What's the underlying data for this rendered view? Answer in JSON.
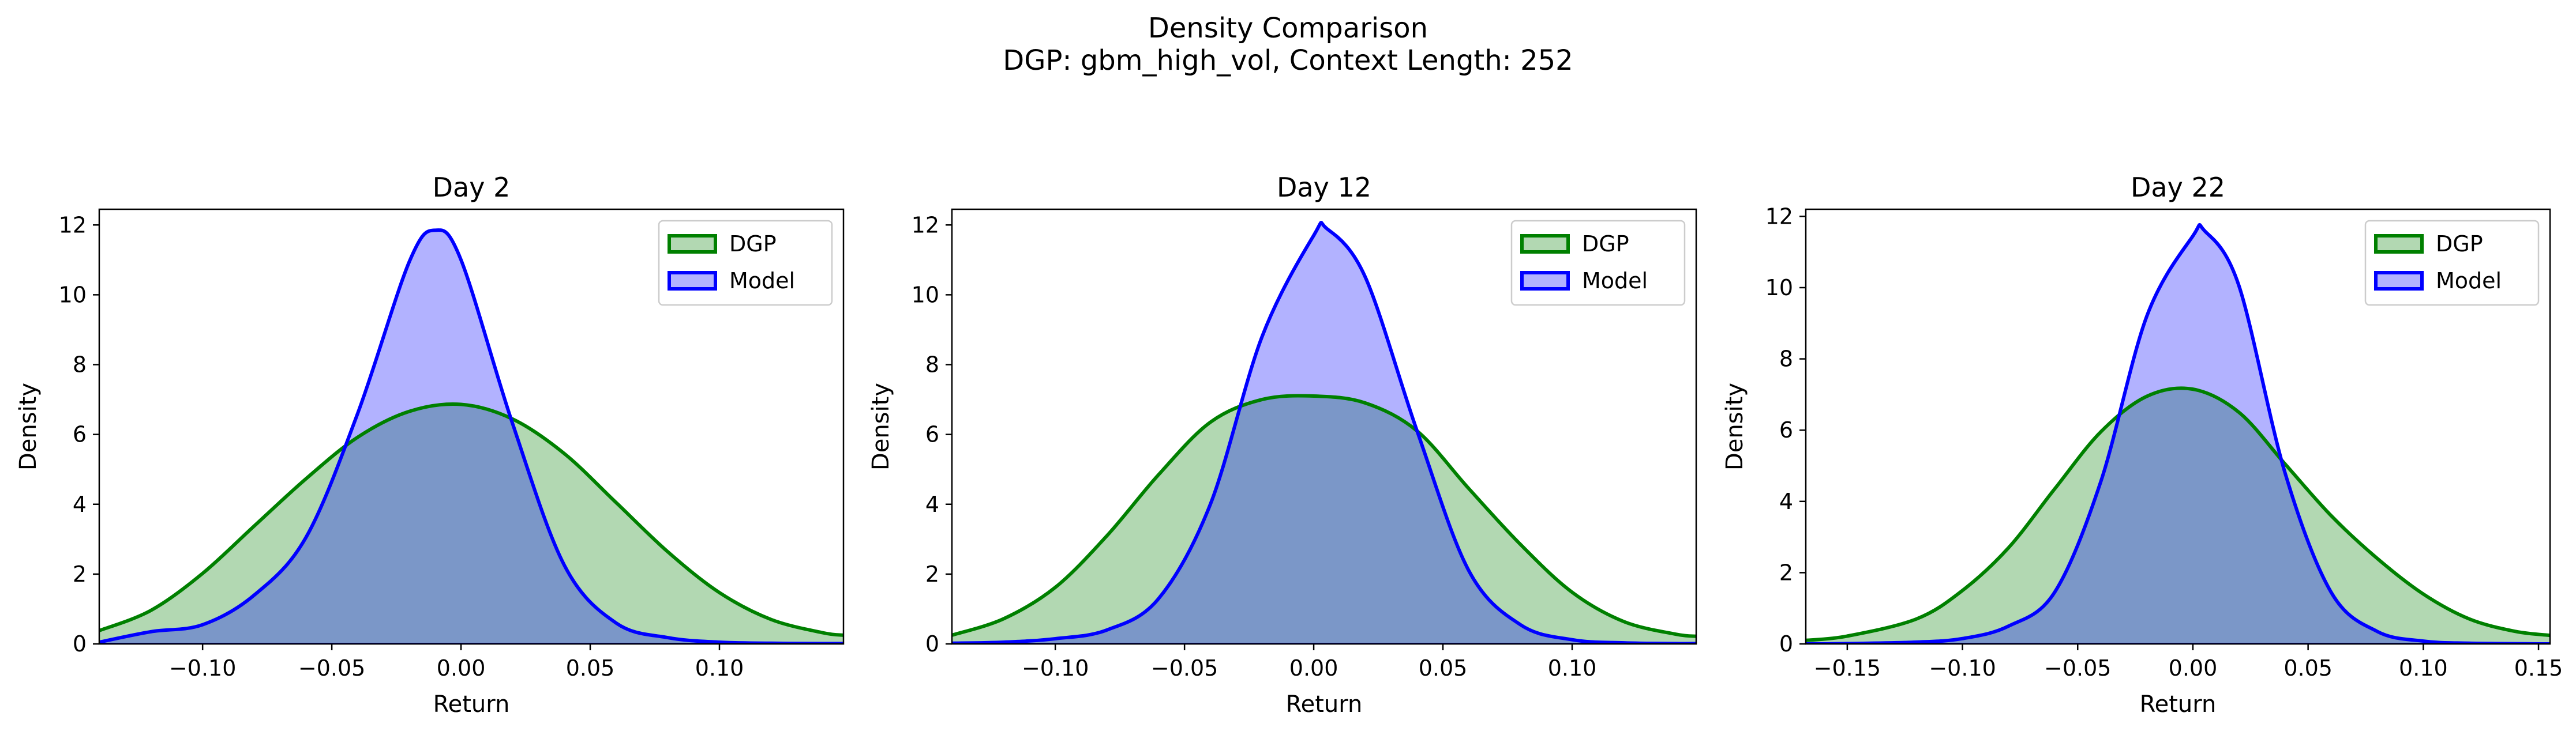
{
  "figure": {
    "title_line1": "Density Comparison",
    "title_line2": "DGP: gbm_high_vol, Context Length: 252"
  },
  "colors": {
    "dgp_line": "#008000",
    "dgp_fill": "#b2d8b2",
    "model_line": "#0000ff",
    "model_fill": "#b2b2ff",
    "overlap_fill": "#7b97c8"
  },
  "chart_data": [
    {
      "type": "area",
      "title": "Day 2",
      "xlabel": "Return",
      "ylabel": "Density",
      "xlim": [
        -0.14,
        0.148
      ],
      "ylim": [
        0,
        12.45
      ],
      "xticks": [
        -0.1,
        -0.05,
        0.0,
        0.05,
        0.1
      ],
      "xtick_labels": [
        "−0.10",
        "−0.05",
        "0.00",
        "0.05",
        "0.10"
      ],
      "yticks": [
        0,
        2,
        4,
        6,
        8,
        10,
        12
      ],
      "ytick_labels": [
        "0",
        "2",
        "4",
        "6",
        "8",
        "10",
        "12"
      ],
      "legend": "top-right",
      "series": [
        {
          "name": "DGP",
          "x": [
            -0.14,
            -0.12,
            -0.1,
            -0.08,
            -0.06,
            -0.04,
            -0.02,
            0.0,
            0.02,
            0.04,
            0.06,
            0.08,
            0.1,
            0.12,
            0.14,
            0.148
          ],
          "y": [
            0.38,
            0.96,
            2.02,
            3.38,
            4.73,
            5.92,
            6.66,
            6.86,
            6.44,
            5.45,
            4.05,
            2.64,
            1.47,
            0.7,
            0.32,
            0.25
          ]
        },
        {
          "name": "Model",
          "x": [
            -0.14,
            -0.12,
            -0.1,
            -0.08,
            -0.06,
            -0.04,
            -0.02,
            -0.01,
            0.0,
            0.02,
            0.04,
            0.06,
            0.08,
            0.1,
            0.12,
            0.14,
            0.148
          ],
          "y": [
            0.05,
            0.35,
            0.55,
            1.4,
            3.05,
            6.6,
            10.95,
            11.85,
            11.0,
            6.3,
            2.25,
            0.6,
            0.18,
            0.05,
            0.02,
            0.01,
            0.01
          ]
        }
      ]
    },
    {
      "type": "area",
      "title": "Day 12",
      "xlabel": "Return",
      "ylabel": "Density",
      "xlim": [
        -0.14,
        0.148
      ],
      "ylim": [
        0,
        12.45
      ],
      "xticks": [
        -0.1,
        -0.05,
        0.0,
        0.05,
        0.1
      ],
      "xtick_labels": [
        "−0.10",
        "−0.05",
        "0.00",
        "0.05",
        "0.10"
      ],
      "yticks": [
        0,
        2,
        4,
        6,
        8,
        10,
        12
      ],
      "ytick_labels": [
        "0",
        "2",
        "4",
        "6",
        "8",
        "10",
        "12"
      ],
      "legend": "top-right",
      "series": [
        {
          "name": "DGP",
          "x": [
            -0.14,
            -0.12,
            -0.1,
            -0.08,
            -0.06,
            -0.04,
            -0.02,
            0.0,
            0.02,
            0.04,
            0.06,
            0.08,
            0.1,
            0.12,
            0.14,
            0.148
          ],
          "y": [
            0.25,
            0.72,
            1.62,
            3.1,
            4.85,
            6.35,
            7.0,
            7.1,
            6.9,
            6.1,
            4.45,
            2.85,
            1.48,
            0.64,
            0.28,
            0.22
          ]
        },
        {
          "name": "Model",
          "x": [
            -0.14,
            -0.12,
            -0.1,
            -0.08,
            -0.06,
            -0.04,
            -0.02,
            0.0,
            0.005,
            0.02,
            0.04,
            0.06,
            0.08,
            0.1,
            0.12,
            0.14,
            0.148
          ],
          "y": [
            0.02,
            0.05,
            0.15,
            0.4,
            1.3,
            4.0,
            8.8,
            11.7,
            11.9,
            10.5,
            6.1,
            2.1,
            0.55,
            0.12,
            0.03,
            0.01,
            0.01
          ]
        }
      ]
    },
    {
      "type": "area",
      "title": "Day 22",
      "xlabel": "Return",
      "ylabel": "Density",
      "xlim": [
        -0.168,
        0.155
      ],
      "ylim": [
        0,
        12.2
      ],
      "xticks": [
        -0.15,
        -0.1,
        -0.05,
        0.0,
        0.05,
        0.1,
        0.15
      ],
      "xtick_labels": [
        "−0.15",
        "−0.10",
        "−0.05",
        "0.00",
        "0.05",
        "0.10",
        "0.15"
      ],
      "yticks": [
        0,
        2,
        4,
        6,
        8,
        10,
        12
      ],
      "ytick_labels": [
        "0",
        "2",
        "4",
        "6",
        "8",
        "10",
        "12"
      ],
      "legend": "top-right",
      "series": [
        {
          "name": "DGP",
          "x": [
            -0.168,
            -0.15,
            -0.12,
            -0.1,
            -0.08,
            -0.06,
            -0.04,
            -0.02,
            0.0,
            0.02,
            0.04,
            0.06,
            0.08,
            0.1,
            0.12,
            0.14,
            0.155
          ],
          "y": [
            0.1,
            0.22,
            0.7,
            1.5,
            2.7,
            4.35,
            5.95,
            6.95,
            7.15,
            6.5,
            5.05,
            3.6,
            2.4,
            1.4,
            0.7,
            0.35,
            0.24
          ]
        },
        {
          "name": "Model",
          "x": [
            -0.168,
            -0.15,
            -0.12,
            -0.1,
            -0.08,
            -0.06,
            -0.04,
            -0.02,
            0.0,
            0.005,
            0.02,
            0.04,
            0.06,
            0.08,
            0.1,
            0.12,
            0.155
          ],
          "y": [
            0.0,
            0.01,
            0.05,
            0.15,
            0.5,
            1.45,
            4.55,
            9.2,
            11.45,
            11.6,
            10.05,
            4.8,
            1.45,
            0.35,
            0.08,
            0.02,
            0.0
          ]
        }
      ]
    }
  ]
}
